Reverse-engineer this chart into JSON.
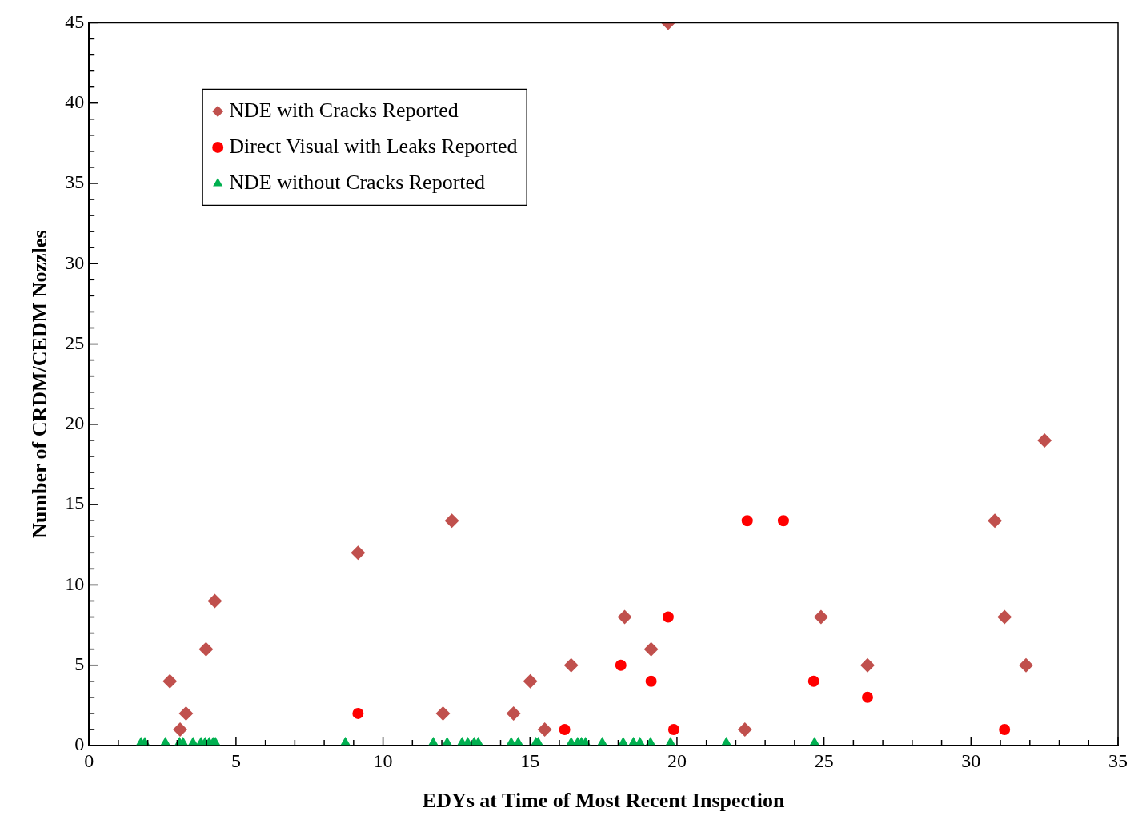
{
  "chart_data": {
    "type": "scatter",
    "xlabel": "EDYs at Time of Most Recent Inspection",
    "ylabel": "Number of CRDM/CEDM Nozzles",
    "xlim": [
      0,
      35
    ],
    "ylim": [
      0,
      45
    ],
    "xticks": [
      0,
      {
        "value": 1,
        "label": null
      },
      {
        "value": 2,
        "label": null
      },
      {
        "value": 3,
        "label": null
      },
      {
        "value": 4,
        "label": null
      },
      5,
      {
        "value": 6,
        "label": null
      },
      {
        "value": 7,
        "label": null
      },
      {
        "value": 8,
        "label": null
      },
      {
        "value": 9,
        "label": null
      },
      10,
      {
        "value": 11,
        "label": null
      },
      {
        "value": 12,
        "label": null
      },
      {
        "value": 13,
        "label": null
      },
      {
        "value": 14,
        "label": null
      },
      15,
      {
        "value": 16,
        "label": null
      },
      {
        "value": 17,
        "label": null
      },
      {
        "value": 18,
        "label": null
      },
      {
        "value": 19,
        "label": null
      },
      20,
      {
        "value": 21,
        "label": null
      },
      {
        "value": 22,
        "label": null
      },
      {
        "value": 23,
        "label": null
      },
      {
        "value": 24,
        "label": null
      },
      25,
      {
        "value": 26,
        "label": null
      },
      {
        "value": 27,
        "label": null
      },
      {
        "value": 28,
        "label": null
      },
      {
        "value": 29,
        "label": null
      },
      30,
      {
        "value": 31,
        "label": null
      },
      {
        "value": 32,
        "label": null
      },
      {
        "value": 33,
        "label": null
      },
      {
        "value": 34,
        "label": null
      },
      35
    ],
    "yticks": [
      0,
      {
        "value": 1,
        "label": null
      },
      {
        "value": 2,
        "label": null
      },
      {
        "value": 3,
        "label": null
      },
      {
        "value": 4,
        "label": null
      },
      5,
      {
        "value": 6,
        "label": null
      },
      {
        "value": 7,
        "label": null
      },
      {
        "value": 8,
        "label": null
      },
      {
        "value": 9,
        "label": null
      },
      10,
      {
        "value": 11,
        "label": null
      },
      {
        "value": 12,
        "label": null
      },
      {
        "value": 13,
        "label": null
      },
      {
        "value": 14,
        "label": null
      },
      15,
      {
        "value": 16,
        "label": null
      },
      {
        "value": 17,
        "label": null
      },
      {
        "value": 18,
        "label": null
      },
      {
        "value": 19,
        "label": null
      },
      20,
      {
        "value": 21,
        "label": null
      },
      {
        "value": 22,
        "label": null
      },
      {
        "value": 23,
        "label": null
      },
      {
        "value": 24,
        "label": null
      },
      25,
      {
        "value": 26,
        "label": null
      },
      {
        "value": 27,
        "label": null
      },
      {
        "value": 28,
        "label": null
      },
      {
        "value": 29,
        "label": null
      },
      30,
      {
        "value": 31,
        "label": null
      },
      {
        "value": 32,
        "label": null
      },
      {
        "value": 33,
        "label": null
      },
      {
        "value": 34,
        "label": null
      },
      35,
      {
        "value": 36,
        "label": null
      },
      {
        "value": 37,
        "label": null
      },
      {
        "value": 38,
        "label": null
      },
      {
        "value": 39,
        "label": null
      },
      40,
      {
        "value": 41,
        "label": null
      },
      {
        "value": 42,
        "label": null
      },
      {
        "value": 43,
        "label": null
      },
      {
        "value": 44,
        "label": null
      },
      45
    ],
    "grid": false,
    "legend": "top left",
    "series": [
      {
        "name": "NDE with Cracks Reported",
        "color": "#c0504d",
        "marker": "diamond",
        "x": [
          2.75,
          3.1,
          3.3,
          3.98,
          4.28,
          9.15,
          12.04,
          12.34,
          14.44,
          15.01,
          15.5,
          16.4,
          18.22,
          19.12,
          19.7,
          22.31,
          24.9,
          26.48,
          30.81,
          31.14,
          31.87,
          32.5
        ],
        "values": [
          4,
          1,
          2,
          6,
          9,
          12,
          2,
          14,
          2,
          4,
          1,
          5,
          8,
          6,
          45,
          1,
          8,
          5,
          14,
          8,
          5,
          19
        ]
      },
      {
        "name": "Direct Visual with Leaks Reported",
        "color": "#ff0000",
        "marker": "circle",
        "x": [
          9.15,
          16.18,
          18.09,
          19.12,
          19.7,
          19.89,
          22.39,
          23.62,
          24.65,
          26.48,
          31.14
        ],
        "values": [
          2,
          1,
          5,
          4,
          8,
          1,
          14,
          14,
          4,
          3,
          1
        ]
      },
      {
        "name": "NDE without Cracks Reported",
        "color": "#00b050",
        "marker": "triangle",
        "x": [
          1.77,
          1.9,
          2.6,
          3.08,
          3.2,
          3.54,
          3.81,
          3.95,
          4.09,
          4.22,
          4.3,
          8.72,
          11.71,
          12.18,
          12.69,
          12.88,
          13.1,
          13.24,
          14.36,
          14.6,
          15.2,
          15.28,
          16.4,
          16.62,
          16.75,
          16.89,
          17.46,
          18.17,
          18.52,
          18.74,
          19.1,
          19.78,
          21.68,
          24.68
        ],
        "values": [
          0,
          0,
          0,
          0,
          0,
          0,
          0,
          0,
          0,
          0,
          0,
          0,
          0,
          0,
          0,
          0,
          0,
          0,
          0,
          0,
          0,
          0,
          0,
          0,
          0,
          0,
          0,
          0,
          0,
          0,
          0,
          0,
          0,
          0
        ]
      }
    ]
  }
}
